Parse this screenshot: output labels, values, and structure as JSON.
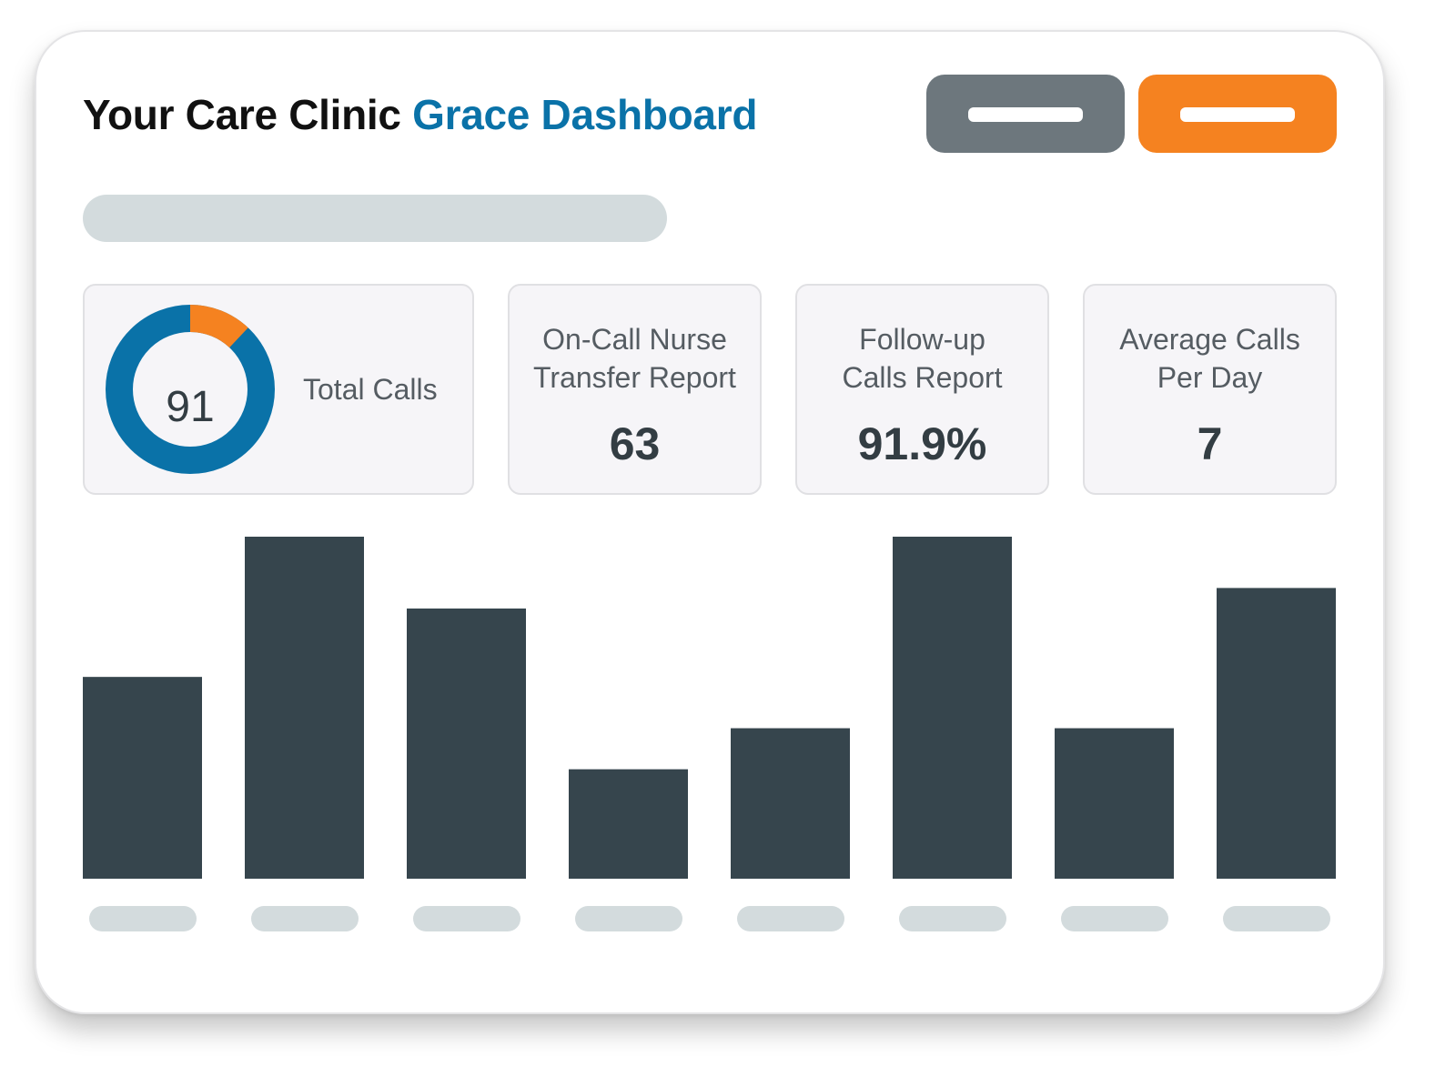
{
  "header": {
    "title_prefix": "Your Care Clinic",
    "title_accent": "Grace Dashboard"
  },
  "colors": {
    "accent_blue": "#0a72a8",
    "accent_orange": "#f58220",
    "button_gray": "#6d777d",
    "bar_color": "#36454d",
    "placeholder": "#d3dbdd"
  },
  "stats": {
    "total_calls": {
      "value": "91",
      "label": "Total Calls",
      "donut_orange_fraction": 0.12
    },
    "nurse_transfer": {
      "label": "On-Call Nurse Transfer Report",
      "value": "63"
    },
    "follow_up": {
      "label": "Follow-up Calls Report",
      "value": "91.9%"
    },
    "average_calls": {
      "label": "Average Calls Per Day",
      "value": "7"
    }
  },
  "chart_data": {
    "type": "bar",
    "categories": [
      "",
      "",
      "",
      "",
      "",
      "",
      "",
      ""
    ],
    "values": [
      59,
      100,
      79,
      32,
      44,
      100,
      44,
      85
    ],
    "ylim": [
      0,
      100
    ],
    "grid": false,
    "color": "#36454d"
  }
}
